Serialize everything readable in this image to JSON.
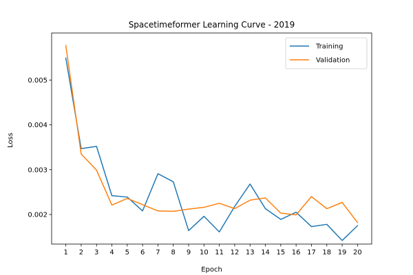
{
  "chart_data": {
    "type": "line",
    "title": "Spacetimeformer Learning Curve - 2019",
    "xlabel": "Epoch",
    "ylabel": "Loss",
    "x": [
      1,
      2,
      3,
      4,
      5,
      6,
      7,
      8,
      9,
      10,
      11,
      12,
      13,
      14,
      15,
      16,
      17,
      18,
      19,
      20
    ],
    "ylim": [
      0.00134,
      0.00605
    ],
    "yticks": [
      0.002,
      0.003,
      0.004,
      0.005
    ],
    "ytick_labels": [
      "0.002",
      "0.003",
      "0.004",
      "0.005"
    ],
    "grid": false,
    "legend_position": "top-right",
    "series": [
      {
        "name": "Training",
        "color": "#1f77b4",
        "values": [
          0.00549,
          0.00347,
          0.00352,
          0.00242,
          0.00239,
          0.00208,
          0.00291,
          0.00273,
          0.00164,
          0.00196,
          0.00161,
          0.00218,
          0.00268,
          0.00213,
          0.00189,
          0.00205,
          0.00173,
          0.00178,
          0.00142,
          0.00175
        ]
      },
      {
        "name": "Validation",
        "color": "#ff7f0e",
        "values": [
          0.00577,
          0.00335,
          0.00299,
          0.00221,
          0.00236,
          0.00222,
          0.00208,
          0.00207,
          0.00212,
          0.00216,
          0.00225,
          0.00213,
          0.00232,
          0.00237,
          0.00203,
          0.00199,
          0.0024,
          0.00213,
          0.00227,
          0.00182
        ]
      }
    ]
  }
}
